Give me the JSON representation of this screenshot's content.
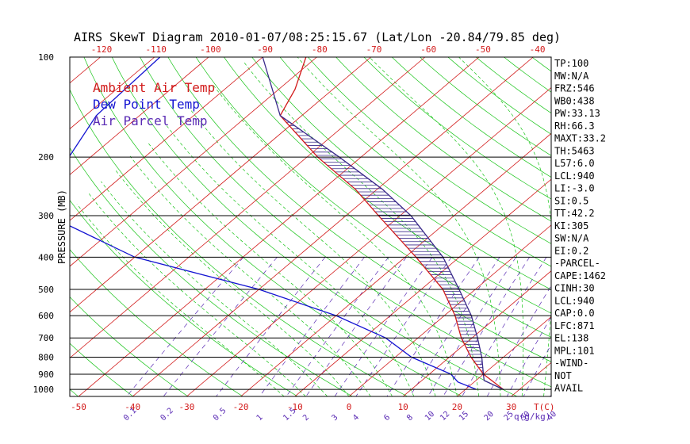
{
  "colors": {
    "isotherm": "#d21a1a",
    "dry_adiabat": "#18c418",
    "moist_adiabat": "#18c418",
    "mixing_ratio": "#5a2bb4",
    "ambient": "#d21a1a",
    "dewpoint": "#1414d2",
    "parcel": "#3a2a8a",
    "isobar": "#000000",
    "text": "#000000"
  },
  "chart_data": {
    "type": "line",
    "title": "AIRS SkewT Diagram 2010-01-07/08:25:15.67 (Lat/Lon -20.84/79.85 deg)",
    "ylabel": "PRESSURE (MB)",
    "xlabel": "T(C)",
    "mixing_ratio_unit": "q(g/kg)",
    "y_scale": "log",
    "ylim": [
      1050,
      100
    ],
    "xlim_bottom": [
      -55,
      40
    ],
    "legend_position": "top-left",
    "legend": [
      {
        "label": "Ambient Air Temp",
        "color": "#d21a1a"
      },
      {
        "label": "Dew Point Temp",
        "color": "#1414d2"
      },
      {
        "label": "Air Parcel Temp",
        "color": "#5a2bb4"
      }
    ],
    "pressure_levels": [
      100,
      200,
      300,
      400,
      500,
      600,
      700,
      800,
      900,
      1000
    ],
    "bottom_temp_ticks": [
      -50,
      -40,
      -30,
      -20,
      -10,
      0,
      10,
      20,
      30
    ],
    "top_temp_ticks": [
      -120,
      -110,
      -100,
      -90,
      -80,
      -70,
      -60,
      -50,
      -40
    ],
    "mixing_ratio_labels": [
      "0.1",
      "0.2",
      "0.5",
      "1",
      "1.5",
      "2",
      "3",
      "4",
      "6",
      "8",
      "10",
      "12",
      "15",
      "20",
      "25",
      "30",
      "40"
    ],
    "series": [
      {
        "name": "Ambient Air Temp",
        "points": [
          [
            100,
            -82
          ],
          [
            125,
            -77
          ],
          [
            150,
            -74
          ],
          [
            200,
            -58
          ],
          [
            250,
            -44
          ],
          [
            300,
            -34
          ],
          [
            400,
            -18
          ],
          [
            500,
            -6
          ],
          [
            600,
            2
          ],
          [
            700,
            8
          ],
          [
            800,
            14
          ],
          [
            900,
            20
          ],
          [
            1000,
            27
          ]
        ]
      },
      {
        "name": "Dew Point Temp",
        "points": [
          [
            100,
            -109
          ],
          [
            150,
            -108
          ],
          [
            200,
            -104
          ],
          [
            250,
            -106
          ],
          [
            300,
            -95
          ],
          [
            400,
            -70
          ],
          [
            500,
            -40
          ],
          [
            600,
            -20
          ],
          [
            700,
            -6
          ],
          [
            800,
            3
          ],
          [
            900,
            14
          ],
          [
            950,
            17
          ],
          [
            1000,
            22
          ]
        ]
      },
      {
        "name": "Air Parcel Temp",
        "points": [
          [
            100,
            -90
          ],
          [
            150,
            -74
          ],
          [
            200,
            -54
          ],
          [
            250,
            -39
          ],
          [
            300,
            -28
          ],
          [
            400,
            -13
          ],
          [
            500,
            -3
          ],
          [
            600,
            5
          ],
          [
            700,
            11
          ],
          [
            800,
            16
          ],
          [
            900,
            20
          ],
          [
            940,
            21.5
          ],
          [
            1000,
            27
          ]
        ]
      }
    ]
  },
  "stats": [
    "TP:100",
    "MW:N/A",
    "FRZ:546",
    "WB0:438",
    "PW:33.13",
    "RH:66.3",
    "MAXT:33.2",
    "TH:5463",
    "L57:6.0",
    "LCL:940",
    "LI:-3.0",
    "SI:0.5",
    "TT:42.2",
    "KI:305",
    "SW:N/A",
    "EI:0.2",
    "-PARCEL-",
    "CAPE:1462",
    "CINH:30",
    "LCL:940",
    "CAP:0.0",
    "LFC:871",
    "EL:138",
    "MPL:101",
    "-WIND-",
    "NOT",
    "AVAIL"
  ]
}
